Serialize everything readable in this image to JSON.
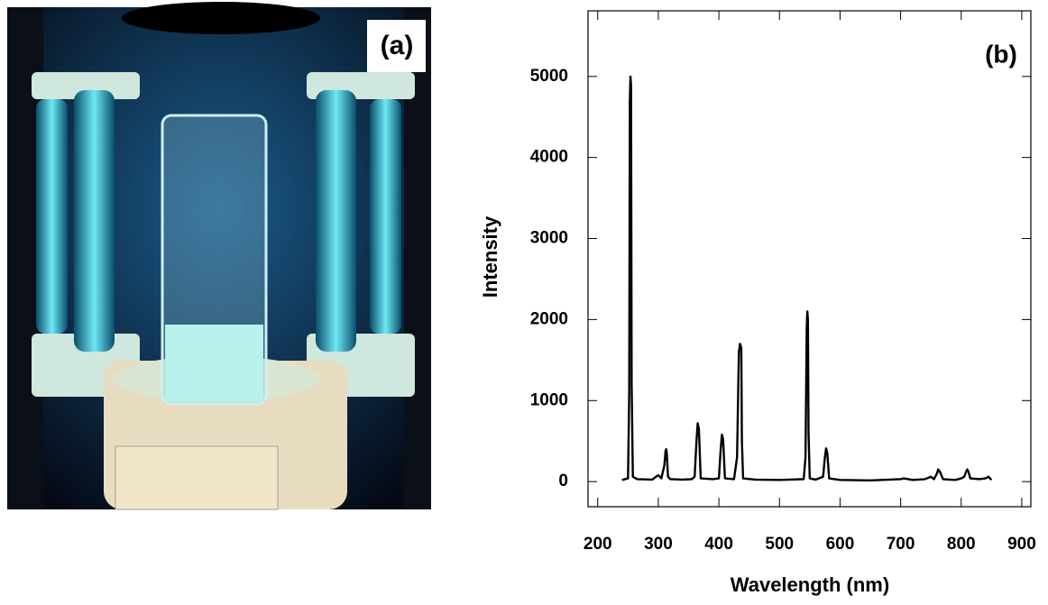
{
  "panel_a": {
    "label": "(a)"
  },
  "chart_data": {
    "type": "line",
    "panel_label": "(b)",
    "x_label": "Wavelength (nm)",
    "y_label": "Intensity",
    "xlim": [
      184,
      915
    ],
    "ylim": [
      -310,
      5810
    ],
    "xticks": [
      200,
      300,
      400,
      500,
      600,
      700,
      800,
      900
    ],
    "yticks": [
      0,
      1000,
      2000,
      3000,
      4000,
      5000
    ],
    "color": "#000000",
    "x": [
      240,
      245,
      250,
      252,
      253,
      254,
      255,
      256,
      258,
      265,
      290,
      300,
      305,
      310,
      312,
      313,
      314,
      316,
      320,
      340,
      355,
      360,
      363,
      365,
      367,
      370,
      390,
      400,
      403,
      405,
      407,
      410,
      425,
      430,
      433,
      435,
      437,
      438,
      440,
      460,
      500,
      540,
      543,
      545,
      546,
      547,
      548,
      550,
      560,
      572,
      575,
      577,
      579,
      582,
      600,
      650,
      700,
      705,
      720,
      740,
      750,
      755,
      760,
      762,
      765,
      770,
      790,
      800,
      805,
      808,
      810,
      812,
      815,
      830,
      840,
      845,
      850
    ],
    "values": [
      20,
      30,
      40,
      1100,
      4700,
      5000,
      4900,
      1200,
      60,
      30,
      25,
      80,
      40,
      200,
      380,
      400,
      350,
      60,
      30,
      25,
      30,
      60,
      500,
      720,
      650,
      40,
      30,
      40,
      400,
      580,
      520,
      40,
      30,
      300,
      1600,
      1700,
      1650,
      500,
      40,
      25,
      20,
      30,
      300,
      1900,
      2100,
      2000,
      600,
      40,
      25,
      60,
      300,
      410,
      350,
      40,
      20,
      15,
      30,
      40,
      20,
      30,
      60,
      30,
      100,
      150,
      120,
      30,
      20,
      40,
      60,
      120,
      150,
      120,
      40,
      30,
      40,
      60,
      20
    ]
  }
}
